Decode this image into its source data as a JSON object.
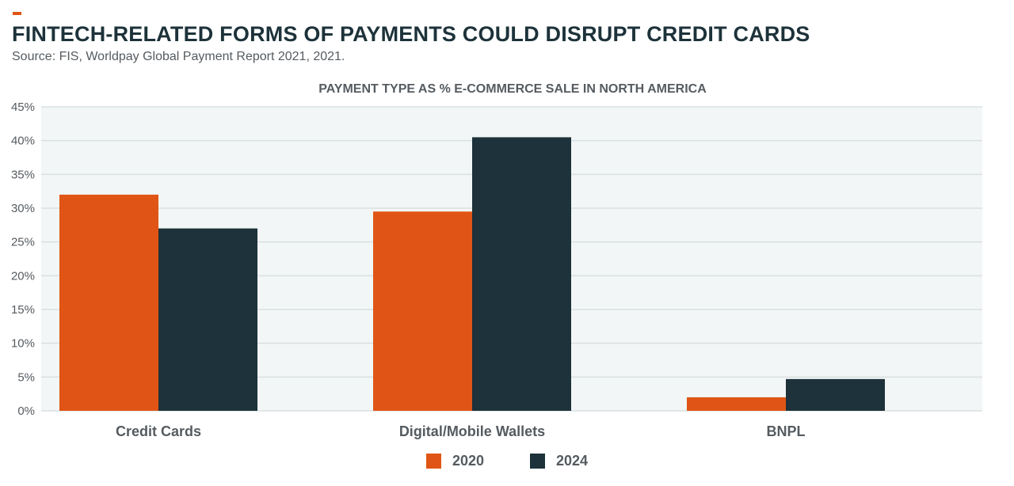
{
  "header": {
    "title": "FINTECH-RELATED FORMS OF PAYMENTS COULD DISRUPT CREDIT CARDS",
    "subtitle": "Source: FIS, Worldpay Global Payment Report 2021, 2021."
  },
  "colors": {
    "accent": "#e05515",
    "series_2020": "#e05515",
    "series_2024": "#1d323a",
    "plot_bg": "#f2f6f6",
    "grid": "#d9e0e1",
    "text": "#555b60",
    "title": "#1d323a"
  },
  "chart_data": {
    "type": "bar",
    "title": "PAYMENT TYPE AS % E-COMMERCE SALE IN NORTH AMERICA",
    "categories": [
      "Credit Cards",
      "Digital/Mobile Wallets",
      "BNPL"
    ],
    "series": [
      {
        "name": "2020",
        "values": [
          32,
          29.5,
          2
        ]
      },
      {
        "name": "2024",
        "values": [
          27,
          40.5,
          4.7
        ]
      }
    ],
    "ylim": [
      0,
      45
    ],
    "yticks": [
      "0%",
      "5%",
      "10%",
      "15%",
      "20%",
      "25%",
      "30%",
      "35%",
      "40%",
      "45%"
    ],
    "grid": true,
    "legend": "bottom-center"
  }
}
